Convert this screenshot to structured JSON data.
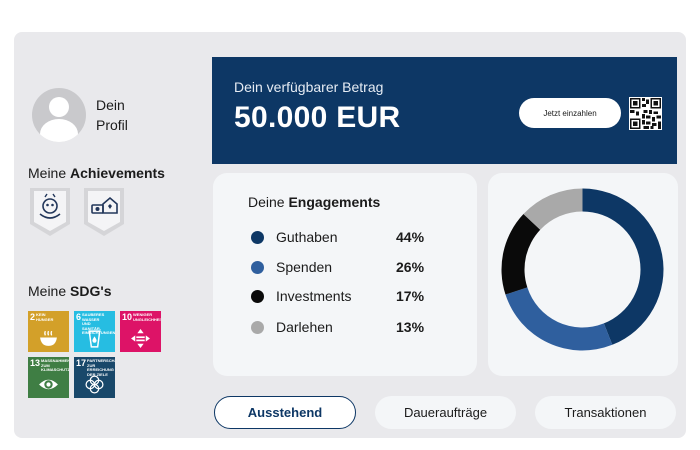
{
  "profile": {
    "label_line1": "Dein",
    "label_line2": "Profil"
  },
  "achievements": {
    "title_prefix": "Meine ",
    "title_bold": "Achievements"
  },
  "sdgs": {
    "title_prefix": "Meine ",
    "title_bold": "SDG's",
    "items": [
      {
        "number": "2",
        "label": "Kein Hunger",
        "color": "#d3a029",
        "icon": "bowl-icon"
      },
      {
        "number": "6",
        "label": "Sauberes Wasser und Sanitär-einrichtungen",
        "color": "#26bde2",
        "icon": "water-glass-icon"
      },
      {
        "number": "10",
        "label": "Weniger Ungleichheiten",
        "color": "#dd1367",
        "icon": "equality-arrows-icon"
      },
      {
        "number": "13",
        "label": "Massnahmen zum Klimaschutz",
        "color": "#3f7e44",
        "icon": "eye-globe-icon"
      },
      {
        "number": "17",
        "label": "Partnerschaften zur Erreichung der Ziele",
        "color": "#19486a",
        "icon": "partnership-rings-icon"
      }
    ]
  },
  "balance": {
    "label": "Dein verfügbarer Betrag",
    "amount": "50.000 EUR",
    "pay_button": "Jetzt einzahlen"
  },
  "engagements": {
    "title_prefix": "Deine ",
    "title_bold": "Engagements",
    "items": [
      {
        "label": "Guthaben",
        "value": "44%",
        "color": "#0d3765"
      },
      {
        "label": "Spenden",
        "value": "26%",
        "color": "#2f5f9e"
      },
      {
        "label": "Investments",
        "value": "17%",
        "color": "#0a0a0a"
      },
      {
        "label": "Darlehen",
        "value": "13%",
        "color": "#a9a9a9"
      }
    ]
  },
  "chart_data": {
    "type": "pie",
    "categories": [
      "Guthaben",
      "Spenden",
      "Investments",
      "Darlehen"
    ],
    "values": [
      44,
      26,
      17,
      13
    ],
    "colors": [
      "#0d3765",
      "#2f5f9e",
      "#0a0a0a",
      "#a9a9a9"
    ],
    "donut": true
  },
  "tabs": [
    {
      "label": "Ausstehend",
      "active": true
    },
    {
      "label": "Daueraufträge",
      "active": false
    },
    {
      "label": "Transaktionen",
      "active": false
    }
  ]
}
